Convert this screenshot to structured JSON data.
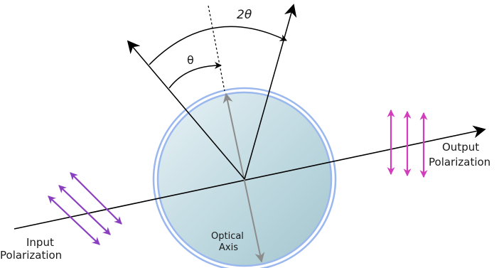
{
  "labels": {
    "double_angle": "2θ",
    "angle": "θ",
    "input_line1": "Input",
    "input_line2": "Polarization",
    "output_line1": "Output",
    "output_line2": "Polarization",
    "axis_line1": "Optical",
    "axis_line2": "Axis"
  },
  "colors": {
    "input_polarization": "#8a3fc0",
    "output_polarization": "#d13dbb",
    "optical_axis": "#8c8c8c",
    "plate_rim": "#9ab7ee",
    "plate_fill": "#c2d9e0",
    "lines": "#000000"
  }
}
